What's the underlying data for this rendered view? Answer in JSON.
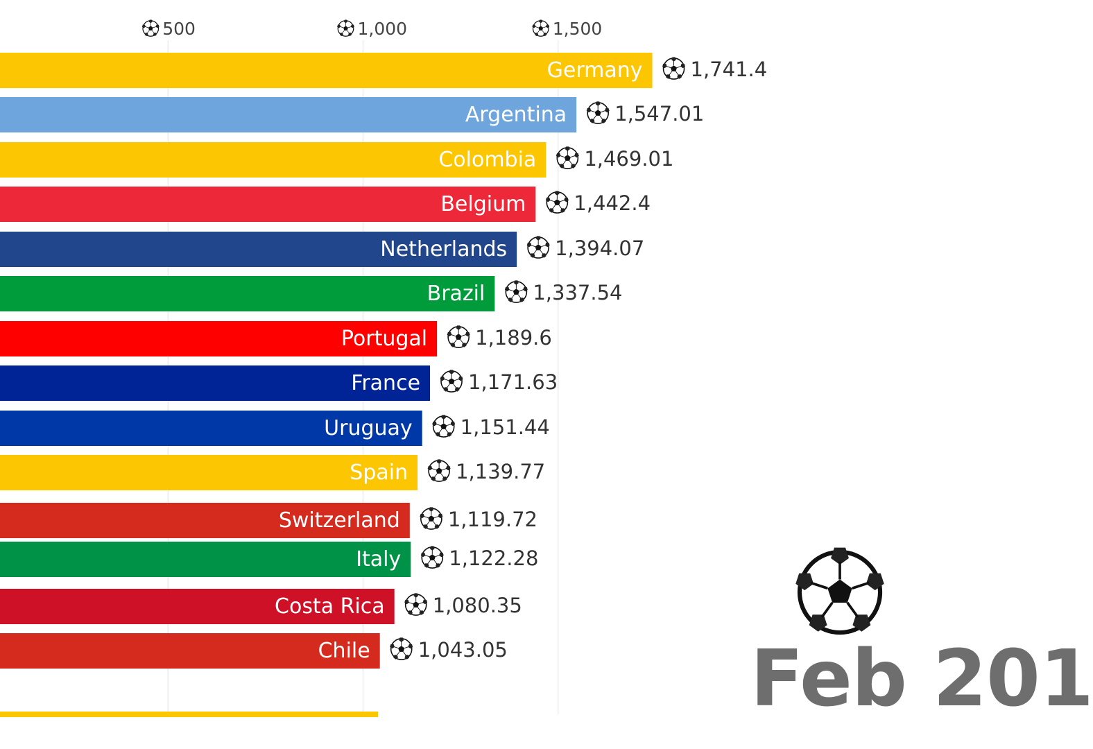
{
  "chart_data": {
    "type": "bar",
    "orientation": "horizontal",
    "x_ticks": [
      {
        "value": 500,
        "label": "500"
      },
      {
        "value": 1000,
        "label": "1,000"
      },
      {
        "value": 1500,
        "label": "1,500"
      }
    ],
    "categories": [
      "Germany",
      "Argentina",
      "Colombia",
      "Belgium",
      "Netherlands",
      "Brazil",
      "Portugal",
      "France",
      "Uruguay",
      "Spain",
      "Switzerland",
      "Italy",
      "Costa Rica",
      "Chile"
    ],
    "values": [
      1741.4,
      1547.01,
      1469.01,
      1442.4,
      1394.07,
      1337.54,
      1189.6,
      1171.63,
      1151.44,
      1139.77,
      1119.72,
      1122.28,
      1080.35,
      1043.05
    ],
    "value_labels": [
      "1,741.4",
      "1,547.01",
      "1,469.01",
      "1,442.4",
      "1,394.07",
      "1,337.54",
      "1,189.6",
      "1,171.63",
      "1,151.44",
      "1,139.77",
      "1,119.72",
      "1,122.28",
      "1,080.35",
      "1,043.05"
    ],
    "colors": [
      "#fcc602",
      "#6fa5dd",
      "#fcc602",
      "#ed2939",
      "#21468b",
      "#009b3a",
      "#ff0000",
      "#002395",
      "#0038a8",
      "#fcc602",
      "#d52b1e",
      "#009246",
      "#ce1126",
      "#d52b1e"
    ],
    "date_label": "Feb 201",
    "grid": true,
    "legend": "none"
  },
  "icons": {
    "value_marker": "soccer-ball-icon",
    "date_marker": "soccer-ball-icon"
  }
}
